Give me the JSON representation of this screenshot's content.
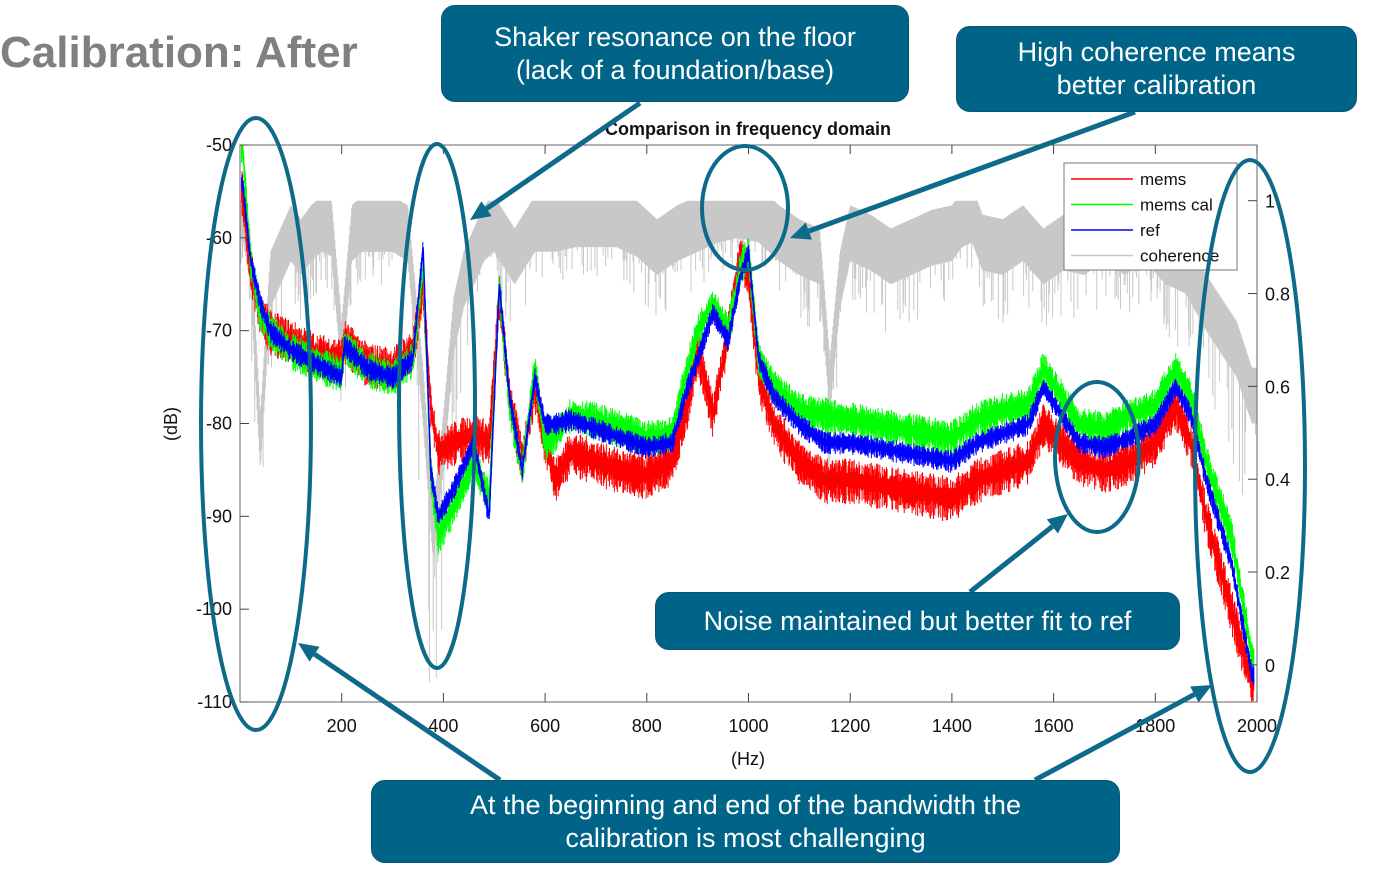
{
  "slide": {
    "title": "Calibration: After"
  },
  "callouts": [
    {
      "id": "shaker",
      "lines": [
        "Shaker resonance on the floor",
        "(lack of a foundation/base)"
      ]
    },
    {
      "id": "coherence",
      "lines": [
        "High coherence means",
        "better calibration"
      ]
    },
    {
      "id": "noise",
      "lines": [
        "Noise maintained but better fit to ref"
      ]
    },
    {
      "id": "bandwidth",
      "lines": [
        "At the beginning and end of the bandwidth the",
        "calibration is most challenging"
      ]
    }
  ],
  "colors": {
    "callout_bg": "#006489",
    "annotation_stroke": "#0e6a8a",
    "mems": "#ff0000",
    "mems_cal": "#00ff00",
    "ref": "#0000ff",
    "coherence": "#c8c8c8",
    "title": "#808080"
  },
  "chart_data": {
    "type": "line",
    "title": "Comparison in frequency domain",
    "xlabel": "(Hz)",
    "ylabel": "(dB)",
    "xlim": [
      0,
      2000
    ],
    "ylim": [
      -110,
      -50
    ],
    "y2lim": [
      -0.08,
      1.12
    ],
    "xticks": [
      200,
      400,
      600,
      800,
      1000,
      1200,
      1400,
      1600,
      1800,
      2000
    ],
    "yticks": [
      -50,
      -60,
      -70,
      -80,
      -90,
      -100,
      -110
    ],
    "y2ticks": [
      0,
      0.2,
      0.4,
      0.6,
      0.8,
      1
    ],
    "legend": {
      "position": "top-right",
      "entries": [
        "mems",
        "mems cal",
        "ref",
        "coherence"
      ]
    },
    "series": [
      {
        "name": "mems",
        "axis": "left",
        "x": [
          5,
          20,
          40,
          60,
          100,
          150,
          200,
          205,
          250,
          300,
          340,
          360,
          375,
          390,
          420,
          460,
          490,
          510,
          530,
          555,
          580,
          600,
          620,
          650,
          700,
          750,
          800,
          850,
          880,
          900,
          930,
          960,
          985,
          1000,
          1020,
          1050,
          1100,
          1150,
          1200,
          1300,
          1400,
          1450,
          1500,
          1550,
          1580,
          1650,
          1700,
          1750,
          1800,
          1840,
          1870,
          1900,
          1950,
          1990
        ],
        "y": [
          -55,
          -63,
          -68,
          -70,
          -71,
          -72.5,
          -73,
          -71,
          -73.5,
          -74,
          -72,
          -65,
          -78,
          -83,
          -82,
          -81,
          -82,
          -66,
          -77,
          -84,
          -76,
          -82,
          -86,
          -83,
          -84,
          -85,
          -85.5,
          -84,
          -78,
          -72,
          -79,
          -70,
          -61.5,
          -64,
          -75,
          -80,
          -84,
          -86,
          -86,
          -87,
          -88,
          -86,
          -85,
          -84,
          -80,
          -84,
          -85,
          -84,
          -82,
          -78,
          -82,
          -90,
          -100,
          -108
        ]
      },
      {
        "name": "mems cal",
        "axis": "left",
        "x": [
          5,
          20,
          40,
          60,
          100,
          150,
          200,
          205,
          250,
          300,
          340,
          360,
          375,
          390,
          420,
          460,
          490,
          510,
          530,
          555,
          580,
          600,
          620,
          650,
          700,
          750,
          800,
          850,
          880,
          900,
          930,
          960,
          985,
          1000,
          1020,
          1050,
          1100,
          1150,
          1200,
          1300,
          1400,
          1450,
          1500,
          1550,
          1580,
          1650,
          1700,
          1750,
          1800,
          1840,
          1870,
          1900,
          1950,
          1990
        ],
        "y": [
          -50,
          -62,
          -68,
          -70,
          -72,
          -73.5,
          -74.5,
          -71.5,
          -74,
          -75,
          -73,
          -63,
          -85,
          -92,
          -89,
          -84,
          -88,
          -65,
          -78,
          -85,
          -74,
          -82,
          -81,
          -79,
          -79.5,
          -80.5,
          -81.5,
          -81,
          -74,
          -70,
          -67,
          -70,
          -63,
          -61.5,
          -73,
          -76,
          -78.5,
          -79,
          -79.5,
          -80.5,
          -81.5,
          -79.5,
          -78.5,
          -78,
          -74,
          -80,
          -80.5,
          -79,
          -78,
          -74,
          -77,
          -84,
          -92,
          -105
        ]
      },
      {
        "name": "ref",
        "axis": "left",
        "x": [
          5,
          20,
          40,
          60,
          100,
          150,
          200,
          205,
          250,
          300,
          340,
          360,
          375,
          390,
          420,
          460,
          490,
          510,
          530,
          555,
          580,
          600,
          620,
          650,
          700,
          750,
          800,
          850,
          880,
          900,
          930,
          960,
          985,
          1000,
          1020,
          1050,
          1100,
          1150,
          1200,
          1300,
          1400,
          1450,
          1500,
          1550,
          1580,
          1650,
          1700,
          1750,
          1800,
          1840,
          1870,
          1900,
          1950,
          1990
        ],
        "y": [
          -54,
          -62,
          -67,
          -70,
          -72,
          -73.5,
          -75,
          -71.5,
          -74,
          -75,
          -73,
          -61,
          -85,
          -90,
          -87,
          -82,
          -90,
          -65,
          -77,
          -85,
          -75,
          -80,
          -80,
          -79.5,
          -80.5,
          -81.5,
          -82.5,
          -82,
          -76,
          -73,
          -68,
          -71,
          -64,
          -61.5,
          -73,
          -77,
          -80,
          -82,
          -82,
          -83,
          -84,
          -82,
          -81,
          -80,
          -76,
          -82,
          -82.5,
          -81.5,
          -80,
          -76,
          -79,
          -86,
          -95,
          -107
        ]
      },
      {
        "name": "coherence",
        "axis": "right",
        "x": [
          5,
          20,
          40,
          60,
          80,
          100,
          120,
          140,
          160,
          180,
          200,
          220,
          240,
          260,
          280,
          300,
          330,
          360,
          380,
          400,
          420,
          440,
          460,
          480,
          500,
          540,
          580,
          620,
          660,
          700,
          740,
          780,
          820,
          860,
          900,
          940,
          980,
          1020,
          1060,
          1100,
          1140,
          1160,
          1180,
          1200,
          1240,
          1280,
          1320,
          1360,
          1400,
          1420,
          1440,
          1460,
          1500,
          1540,
          1580,
          1620,
          1660,
          1700,
          1740,
          1780,
          1820,
          1860,
          1900,
          1930,
          1960,
          1990
        ],
        "y": [
          1,
          0.9,
          0.5,
          0.85,
          0.9,
          0.95,
          0.92,
          0.95,
          0.97,
          0.96,
          0.7,
          0.95,
          0.97,
          0.97,
          0.97,
          0.97,
          0.95,
          0.6,
          0.3,
          0.5,
          0.75,
          0.85,
          0.9,
          0.95,
          0.97,
          0.9,
          0.97,
          0.97,
          0.98,
          0.98,
          0.98,
          0.96,
          0.92,
          0.95,
          0.97,
          0.99,
          1,
          0.99,
          0.95,
          0.92,
          0.9,
          0.62,
          0.85,
          0.95,
          0.93,
          0.9,
          0.92,
          0.94,
          0.95,
          0.98,
          0.99,
          0.93,
          0.92,
          0.95,
          0.9,
          0.93,
          0.92,
          0.95,
          0.92,
          0.95,
          0.9,
          0.88,
          0.8,
          0.75,
          0.7,
          0.6
        ]
      }
    ]
  }
}
